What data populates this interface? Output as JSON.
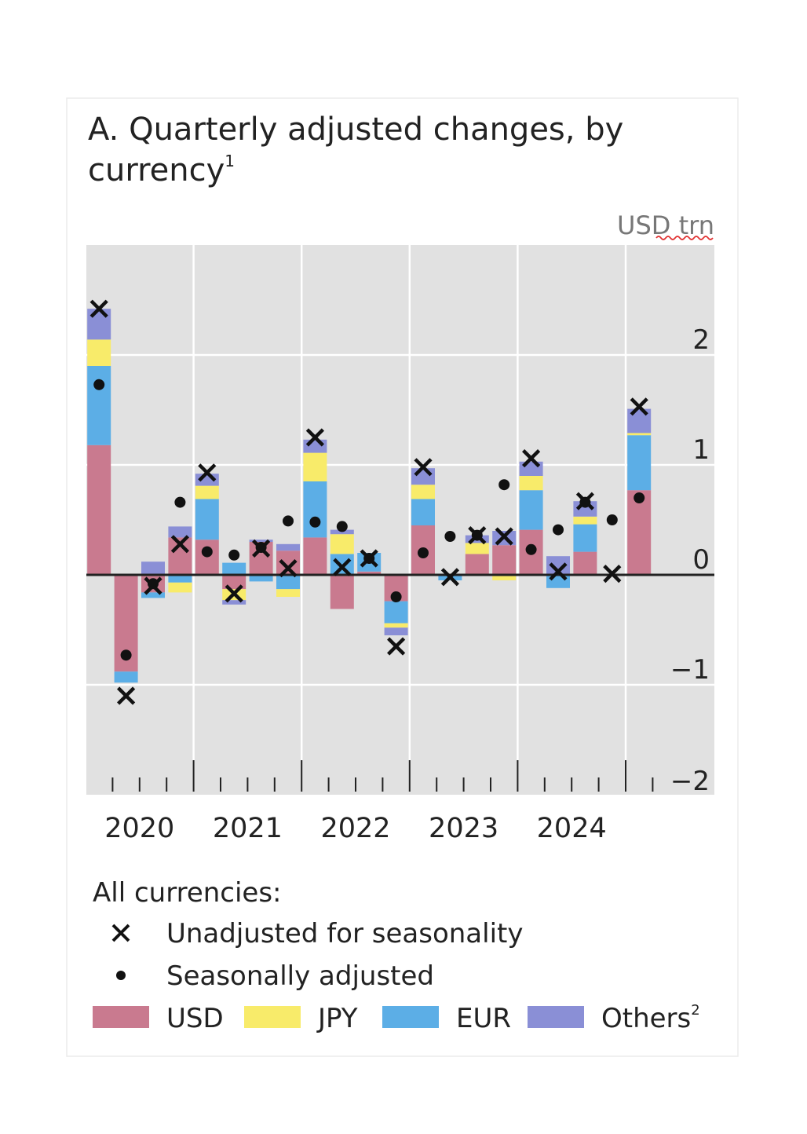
{
  "chart_data": {
    "type": "bar",
    "stacked": true,
    "title": "A. Quarterly adjusted changes, by",
    "title_line2": "currency",
    "title_footnote": "1",
    "unit_label": "USD trn",
    "ylim": [
      -2,
      3
    ],
    "yticks": [
      2,
      1,
      0,
      -1,
      -2
    ],
    "ytick_labels": [
      "2",
      "1",
      "0",
      "−1",
      "−2"
    ],
    "grid": true,
    "year_labels": [
      "2020",
      "2021",
      "2022",
      "2023",
      "2024"
    ],
    "quarters": [
      "2020Q1",
      "2020Q2",
      "2020Q3",
      "2020Q4",
      "2021Q1",
      "2021Q2",
      "2021Q3",
      "2021Q4",
      "2022Q1",
      "2022Q2",
      "2022Q3",
      "2022Q4",
      "2023Q1",
      "2023Q2",
      "2023Q3",
      "2023Q4",
      "2024Q1",
      "2024Q2",
      "2024Q3",
      "2024Q4",
      "2025Q1"
    ],
    "series": [
      {
        "name": "USD",
        "color": "#c97a8f",
        "values": [
          1.18,
          -0.88,
          -0.16,
          0.34,
          0.32,
          -0.13,
          0.3,
          0.22,
          0.34,
          -0.31,
          0.03,
          -0.24,
          0.45,
          0.0,
          0.19,
          0.27,
          0.41,
          0.0,
          0.21,
          0.0,
          0.77
        ]
      },
      {
        "name": "EUR",
        "color": "#5caee6",
        "values": [
          0.72,
          -0.1,
          -0.05,
          -0.07,
          0.37,
          0.11,
          -0.06,
          -0.13,
          0.51,
          0.19,
          0.17,
          -0.2,
          0.24,
          -0.05,
          0.0,
          0.0,
          0.36,
          -0.12,
          0.25,
          0.0,
          0.5
        ]
      },
      {
        "name": "JPY",
        "color": "#f8eb6a",
        "values": [
          0.24,
          0.0,
          0.0,
          -0.09,
          0.12,
          -0.1,
          0.0,
          -0.07,
          0.26,
          0.18,
          0.0,
          -0.04,
          0.13,
          0.0,
          0.1,
          -0.05,
          0.13,
          0.0,
          0.07,
          0.0,
          0.02
        ]
      },
      {
        "name": "Others",
        "footnote": "2",
        "color": "#8a8fd6",
        "values": [
          0.28,
          0.0,
          0.12,
          0.1,
          0.11,
          -0.04,
          0.02,
          0.06,
          0.12,
          0.04,
          0.0,
          -0.07,
          0.15,
          0.0,
          0.07,
          0.13,
          0.13,
          0.17,
          0.14,
          0.0,
          0.22
        ]
      }
    ],
    "markers": [
      {
        "name": "Unadjusted for seasonality",
        "symbol": "x",
        "values": [
          2.42,
          -1.1,
          -0.1,
          0.28,
          0.93,
          -0.17,
          0.24,
          0.06,
          1.25,
          0.07,
          0.15,
          -0.65,
          0.98,
          -0.02,
          0.36,
          0.35,
          1.06,
          0.03,
          0.67,
          0.01,
          1.53
        ]
      },
      {
        "name": "Seasonally adjusted",
        "symbol": "dot",
        "values": [
          1.73,
          -0.73,
          -0.08,
          0.66,
          0.21,
          0.18,
          0.25,
          0.49,
          0.48,
          0.44,
          0.15,
          -0.2,
          0.2,
          0.35,
          0.36,
          0.82,
          0.23,
          0.41,
          0.66,
          0.5,
          0.7
        ]
      }
    ],
    "legend": {
      "heading": "All currencies:",
      "placement": "bottom"
    }
  }
}
